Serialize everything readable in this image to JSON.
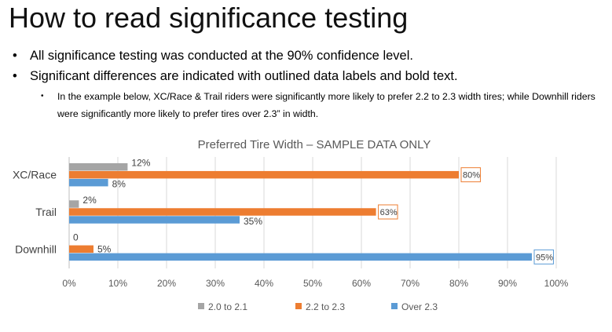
{
  "page": {
    "title": "How to read significance testing",
    "bullets": [
      "All significance testing was conducted at the 90% confidence level.",
      "Significant differences are indicated with outlined data labels and bold text."
    ],
    "sub_bullet": "In the example below, XC/Race & Trail riders were significantly more likely to prefer 2.2 to 2.3 width tires; while Downhill riders were significantly more likely to prefer tires over 2.3” in width."
  },
  "chart_data": {
    "type": "bar",
    "orientation": "horizontal",
    "title": "Preferred Tire Width – SAMPLE DATA ONLY",
    "categories": [
      "XC/Race",
      "Trail",
      "Downhill"
    ],
    "series": [
      {
        "name": "2.0 to 2.1",
        "color": "#a5a5a5",
        "values": [
          12,
          2,
          0
        ],
        "labels": [
          "12%",
          "2%",
          "0"
        ],
        "significant": [
          false,
          false,
          false
        ]
      },
      {
        "name": "2.2 to 2.3",
        "color": "#ed7d31",
        "values": [
          80,
          63,
          5
        ],
        "labels": [
          "80%",
          "63%",
          "5%"
        ],
        "significant": [
          true,
          true,
          false
        ]
      },
      {
        "name": "Over 2.3",
        "color": "#5b9bd5",
        "values": [
          8,
          35,
          95
        ],
        "labels": [
          "8%",
          "35%",
          "95%"
        ],
        "significant": [
          false,
          false,
          true
        ]
      }
    ],
    "xlim": [
      0,
      100
    ],
    "x_ticks": [
      "0%",
      "10%",
      "20%",
      "30%",
      "40%",
      "50%",
      "60%",
      "70%",
      "80%",
      "90%",
      "100%"
    ],
    "grid": true,
    "legend_position": "bottom",
    "xlabel": "",
    "ylabel": ""
  }
}
